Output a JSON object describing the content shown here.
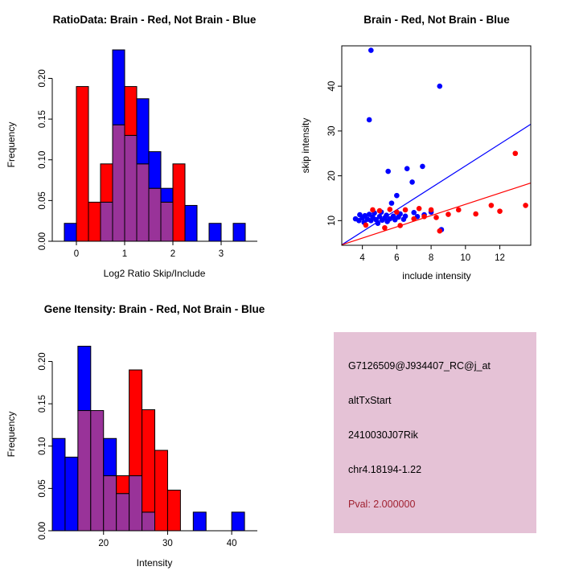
{
  "colors": {
    "background": "#FFFFFF",
    "brain_red": "#FF0000",
    "not_brain_blue": "#0000FF",
    "overlap_purple": "#993399",
    "axis_black": "#000000",
    "info_box_background": "#E5C2D6",
    "pval_red": "#A02030"
  },
  "chart_data": [
    {
      "id": "ratio_histogram",
      "type": "bar",
      "subtype": "overlaid-histogram",
      "title": "RatioData: Brain - Red, Not Brain - Blue",
      "xlabel": "Log2 Ratio Skip/Include",
      "ylabel": "Frequency",
      "xlim": [
        -0.5,
        3.75
      ],
      "ylim": [
        0,
        0.237
      ],
      "xticks": {
        "values": [
          0,
          1,
          2,
          3
        ],
        "labels": [
          "0",
          "1",
          "2",
          "3"
        ]
      },
      "yticks": {
        "values": [
          0,
          0.05,
          0.1,
          0.15,
          0.2
        ],
        "labels": [
          "0.00",
          "0.05",
          "0.10",
          "0.15",
          "0.20"
        ]
      },
      "bins": {
        "start": -0.25,
        "width": 0.25
      },
      "overlap_color": "#993399",
      "series": [
        {
          "name": "Brain",
          "color": "#FF0000",
          "heights": [
            0,
            0.19,
            0.048,
            0.095,
            0.143,
            0.19,
            0.095,
            0.065,
            0.048,
            0.095,
            0,
            0,
            0,
            0,
            0,
            0
          ]
        },
        {
          "name": "Not Brain",
          "color": "#0000FF",
          "heights": [
            0.022,
            0,
            0,
            0.048,
            0.235,
            0.13,
            0.175,
            0.11,
            0.065,
            0,
            0.044,
            0,
            0.022,
            0,
            0.022,
            0
          ]
        }
      ]
    },
    {
      "id": "intensity_scatter",
      "type": "scatter",
      "title": "Brain - Red, Not Brain - Blue",
      "xlabel": "include intensity",
      "ylabel": "skip intensity",
      "xlim": [
        2.8,
        13.8
      ],
      "ylim": [
        4.5,
        49
      ],
      "xticks": {
        "values": [
          4,
          6,
          8,
          10,
          12
        ],
        "labels": [
          "4",
          "6",
          "8",
          "10",
          "12"
        ]
      },
      "yticks": {
        "values": [
          10,
          20,
          30,
          40
        ],
        "labels": [
          "10",
          "20",
          "30",
          "40"
        ]
      },
      "series": [
        {
          "name": "Not Brain",
          "color": "#0000FF",
          "points": [
            [
              3.6,
              10.4
            ],
            [
              3.8,
              10.0
            ],
            [
              3.85,
              11.3
            ],
            [
              4.0,
              10.6
            ],
            [
              4.1,
              9.6
            ],
            [
              4.15,
              11.1
            ],
            [
              4.3,
              10.3
            ],
            [
              4.4,
              11.4
            ],
            [
              4.4,
              32.5
            ],
            [
              4.5,
              48.0
            ],
            [
              4.5,
              10.0
            ],
            [
              4.6,
              10.8
            ],
            [
              4.7,
              11.7
            ],
            [
              4.8,
              10.2
            ],
            [
              4.9,
              9.4
            ],
            [
              5.0,
              10.9
            ],
            [
              5.1,
              11.9
            ],
            [
              5.15,
              10.1
            ],
            [
              5.3,
              10.6
            ],
            [
              5.4,
              11.2
            ],
            [
              5.45,
              9.8
            ],
            [
              5.5,
              21.0
            ],
            [
              5.6,
              10.4
            ],
            [
              5.7,
              13.9
            ],
            [
              5.8,
              11.0
            ],
            [
              5.9,
              10.2
            ],
            [
              6.0,
              15.6
            ],
            [
              6.1,
              10.8
            ],
            [
              6.2,
              11.5
            ],
            [
              6.4,
              10.3
            ],
            [
              6.5,
              11.0
            ],
            [
              6.6,
              21.6
            ],
            [
              6.9,
              18.6
            ],
            [
              7.0,
              11.8
            ],
            [
              7.2,
              10.9
            ],
            [
              7.5,
              22.1
            ],
            [
              7.6,
              11.3
            ],
            [
              8.0,
              11.9
            ],
            [
              8.5,
              40.0
            ],
            [
              8.6,
              8.0
            ]
          ]
        },
        {
          "name": "Brain",
          "color": "#FF0000",
          "points": [
            [
              4.2,
              9.0
            ],
            [
              4.6,
              12.4
            ],
            [
              5.0,
              12.2
            ],
            [
              5.3,
              8.4
            ],
            [
              5.6,
              12.5
            ],
            [
              6.0,
              11.9
            ],
            [
              6.2,
              8.9
            ],
            [
              6.5,
              12.4
            ],
            [
              7.0,
              10.4
            ],
            [
              7.3,
              12.7
            ],
            [
              7.6,
              10.9
            ],
            [
              8.0,
              12.4
            ],
            [
              8.3,
              10.7
            ],
            [
              8.5,
              7.7
            ],
            [
              9.0,
              11.4
            ],
            [
              9.6,
              12.4
            ],
            [
              10.6,
              11.5
            ],
            [
              11.5,
              13.4
            ],
            [
              12.0,
              12.1
            ],
            [
              12.9,
              25.0
            ],
            [
              13.5,
              13.4
            ]
          ]
        }
      ],
      "fit_lines": [
        {
          "name": "not-brain-fit",
          "color": "#0000FF",
          "x1": 2.8,
          "y1": 4.6,
          "x2": 13.8,
          "y2": 31.5
        },
        {
          "name": "brain-fit",
          "color": "#FF0000",
          "x1": 2.8,
          "y1": 4.6,
          "x2": 13.8,
          "y2": 18.4
        }
      ]
    },
    {
      "id": "gene_intensity_histogram",
      "type": "bar",
      "subtype": "overlaid-histogram",
      "title": "Gene Itensity: Brain - Red, Not Brain - Blue",
      "xlabel": "Intensity",
      "ylabel": "Frequency",
      "xlim": [
        12,
        44
      ],
      "ylim": [
        0,
        0.228
      ],
      "xticks": {
        "values": [
          20,
          30,
          40
        ],
        "labels": [
          "20",
          "30",
          "40"
        ]
      },
      "yticks": {
        "values": [
          0,
          0.05,
          0.1,
          0.15,
          0.2
        ],
        "labels": [
          "0.00",
          "0.05",
          "0.10",
          "0.15",
          "0.20"
        ]
      },
      "bins": {
        "start": 12,
        "width": 2
      },
      "overlap_color": "#993399",
      "series": [
        {
          "name": "Brain",
          "color": "#FF0000",
          "heights": [
            0,
            0,
            0.142,
            0.142,
            0.065,
            0.065,
            0.19,
            0.143,
            0.095,
            0.048,
            0,
            0,
            0,
            0,
            0,
            0
          ]
        },
        {
          "name": "Not Brain",
          "color": "#0000FF",
          "heights": [
            0.109,
            0.087,
            0.218,
            0.142,
            0.109,
            0.044,
            0.065,
            0.022,
            0,
            0,
            0,
            0.022,
            0,
            0,
            0.022,
            0
          ]
        }
      ]
    },
    {
      "id": "info_panel",
      "type": "table",
      "background": "#E5C2D6",
      "lines": [
        {
          "text": "G7126509@J934407_RC@j_at",
          "color": "#000000"
        },
        {
          "text": "altTxStart",
          "color": "#000000"
        },
        {
          "text": "2410030J07Rik",
          "color": "#000000"
        },
        {
          "text": "chr4.18194-1.22",
          "color": "#000000"
        },
        {
          "text": "Pval: 2.000000",
          "color": "#A02030"
        }
      ]
    }
  ]
}
